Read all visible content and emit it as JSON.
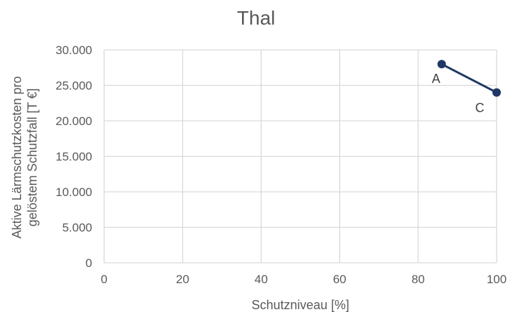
{
  "chart_data": {
    "type": "scatter",
    "title": "Thal",
    "xlabel": "Schutzniveau [%]",
    "ylabel_lines": [
      "Aktive Lärmschutzkosten pro",
      "gelöstem Schutzfall [T €]"
    ],
    "xlim": [
      0,
      100
    ],
    "ylim": [
      0,
      30000
    ],
    "x_ticks": [
      0,
      20,
      40,
      60,
      80,
      100
    ],
    "x_tick_labels": [
      "0",
      "20",
      "40",
      "60",
      "80",
      "100"
    ],
    "y_ticks": [
      0,
      5000,
      10000,
      15000,
      20000,
      25000,
      30000
    ],
    "y_tick_labels": [
      "0",
      "5.000",
      "10.000",
      "15.000",
      "20.000",
      "25.000",
      "30.000"
    ],
    "grid": true,
    "series": [
      {
        "color": "#1f3864",
        "connected": true,
        "points": [
          {
            "x": 86,
            "y": 28000,
            "label": "A"
          },
          {
            "x": 100,
            "y": 24000,
            "label": "C"
          }
        ]
      }
    ]
  }
}
